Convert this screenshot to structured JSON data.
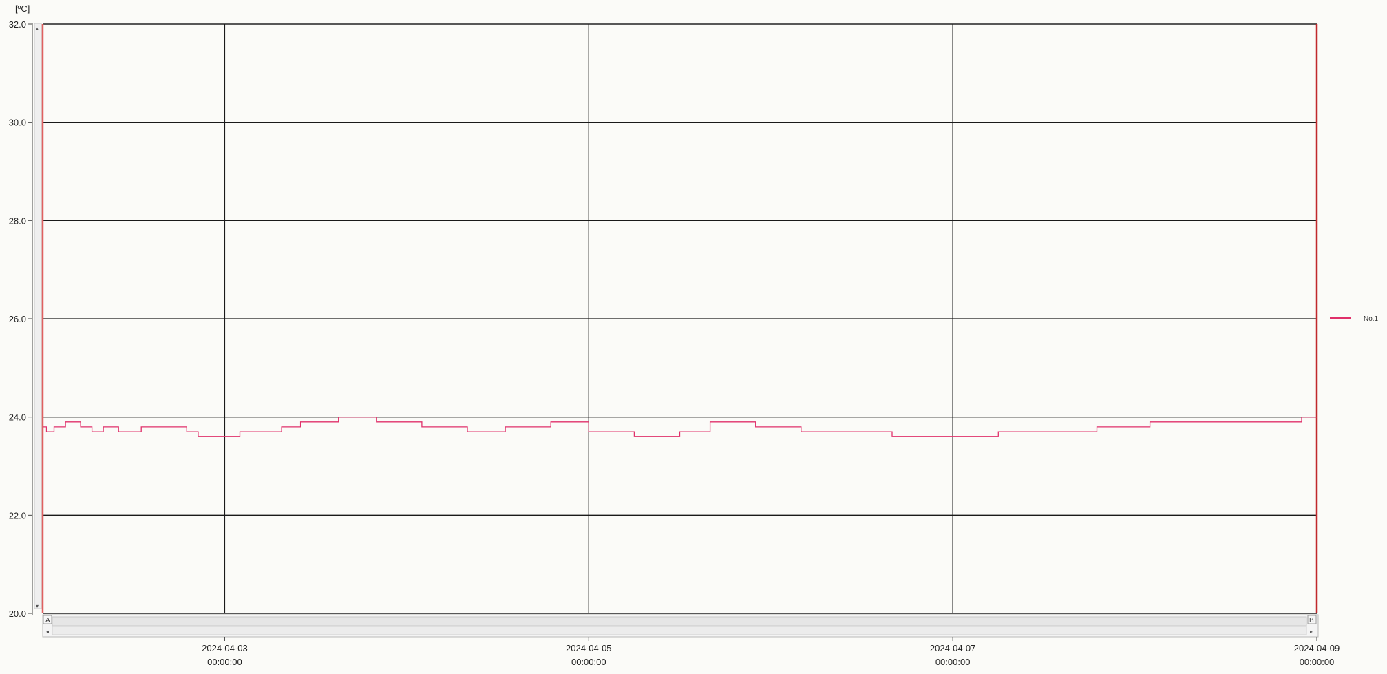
{
  "chart_data": {
    "type": "line",
    "ylabel": "[ºC]",
    "ylim": [
      20.0,
      32.0
    ],
    "y_ticks": [
      "32.0",
      "30.0",
      "28.0",
      "26.0",
      "24.0",
      "22.0",
      "20.0"
    ],
    "xlim": [
      "2024-04-02 00:00:00",
      "2024-04-09 00:00:00"
    ],
    "x_ticks": [
      {
        "date": "2024-04-03",
        "time": "00:00:00"
      },
      {
        "date": "2024-04-05",
        "time": "00:00:00"
      },
      {
        "date": "2024-04-07",
        "time": "00:00:00"
      },
      {
        "date": "2024-04-09",
        "time": "00:00:00"
      }
    ],
    "grid": true,
    "legend_position": "right",
    "cursor_labels": [
      "A",
      "B"
    ],
    "series": [
      {
        "name": "No.1",
        "color": "#e0306a",
        "points": [
          [
            "2024-04-02 00:00",
            23.8
          ],
          [
            "2024-04-02 00:30",
            23.7
          ],
          [
            "2024-04-02 01:30",
            23.8
          ],
          [
            "2024-04-02 03:00",
            23.9
          ],
          [
            "2024-04-02 05:00",
            23.8
          ],
          [
            "2024-04-02 06:30",
            23.7
          ],
          [
            "2024-04-02 08:00",
            23.8
          ],
          [
            "2024-04-02 10:00",
            23.7
          ],
          [
            "2024-04-02 13:00",
            23.8
          ],
          [
            "2024-04-02 16:00",
            23.8
          ],
          [
            "2024-04-02 19:00",
            23.7
          ],
          [
            "2024-04-02 20:30",
            23.6
          ],
          [
            "2024-04-03 02:00",
            23.7
          ],
          [
            "2024-04-03 07:30",
            23.8
          ],
          [
            "2024-04-03 10:00",
            23.9
          ],
          [
            "2024-04-03 15:00",
            24.0
          ],
          [
            "2024-04-03 20:00",
            23.9
          ],
          [
            "2024-04-04 02:00",
            23.8
          ],
          [
            "2024-04-04 08:00",
            23.7
          ],
          [
            "2024-04-04 13:00",
            23.8
          ],
          [
            "2024-04-04 19:00",
            23.9
          ],
          [
            "2024-04-05 00:00",
            23.7
          ],
          [
            "2024-04-05 06:00",
            23.6
          ],
          [
            "2024-04-05 12:00",
            23.7
          ],
          [
            "2024-04-05 16:00",
            23.9
          ],
          [
            "2024-04-05 22:00",
            23.8
          ],
          [
            "2024-04-06 04:00",
            23.7
          ],
          [
            "2024-04-06 12:00",
            23.7
          ],
          [
            "2024-04-06 16:00",
            23.6
          ],
          [
            "2024-04-07 00:00",
            23.6
          ],
          [
            "2024-04-07 06:00",
            23.7
          ],
          [
            "2024-04-07 15:00",
            23.7
          ],
          [
            "2024-04-07 19:00",
            23.8
          ],
          [
            "2024-04-08 02:00",
            23.9
          ],
          [
            "2024-04-08 19:00",
            23.9
          ],
          [
            "2024-04-08 22:00",
            24.0
          ],
          [
            "2024-04-09 00:00",
            24.0
          ]
        ]
      }
    ]
  }
}
